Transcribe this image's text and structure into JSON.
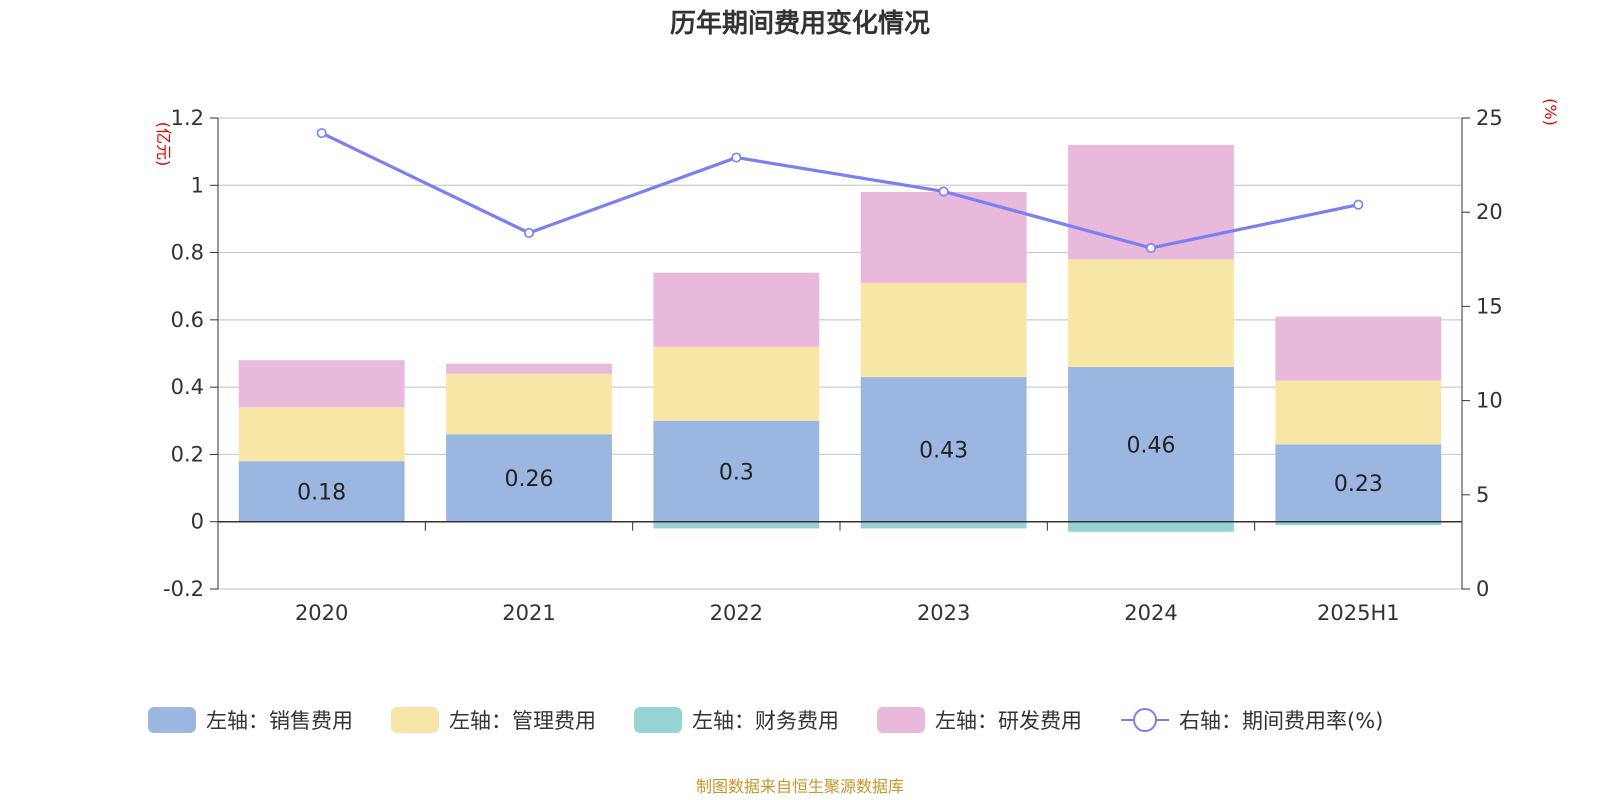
{
  "title": "历年期间费用变化情况",
  "source_note": "制图数据来自恒生聚源数据库",
  "colors": {
    "sales": "#9bb6e0",
    "admin": "#f8e6a6",
    "finance": "#96d3d3",
    "rd": "#e8b9da",
    "line": "#7b7ff0",
    "unit": "#e60000",
    "source": "#c8962a"
  },
  "chart_data": {
    "type": "bar",
    "stacked": true,
    "categories": [
      "2020",
      "2021",
      "2022",
      "2023",
      "2024",
      "2025H1"
    ],
    "left_axis": {
      "unit": "(亿元)",
      "ylim": [
        -0.2,
        1.2
      ],
      "ticks": [
        "-0.2",
        "0",
        "0.2",
        "0.4",
        "0.6",
        "0.8",
        "1",
        "1.2"
      ]
    },
    "right_axis": {
      "unit": "(%)",
      "ylim": [
        0,
        25
      ],
      "ticks": [
        "0",
        "5",
        "10",
        "15",
        "20",
        "25"
      ]
    },
    "grid": true,
    "legend_position": "bottom",
    "series": [
      {
        "key": "sales",
        "name": "左轴：销售费用",
        "axis": "left",
        "values": [
          0.18,
          0.26,
          0.3,
          0.43,
          0.46,
          0.23
        ],
        "labels": [
          "0.18",
          "0.26",
          "0.3",
          "0.43",
          "0.46",
          "0.23"
        ]
      },
      {
        "key": "admin",
        "name": "左轴：管理费用",
        "axis": "left",
        "values": [
          0.16,
          0.18,
          0.22,
          0.28,
          0.32,
          0.19
        ]
      },
      {
        "key": "finance",
        "name": "左轴：财务费用",
        "axis": "left",
        "values": [
          0,
          0,
          -0.02,
          -0.02,
          -0.03,
          -0.01
        ]
      },
      {
        "key": "rd",
        "name": "左轴：研发费用",
        "axis": "left",
        "values": [
          0.14,
          0.03,
          0.22,
          0.27,
          0.34,
          0.19
        ]
      },
      {
        "key": "rate",
        "name": "右轴：期间费用率(%)",
        "axis": "right",
        "type": "line",
        "values": [
          24.2,
          18.9,
          22.9,
          21.1,
          18.1,
          20.4
        ]
      }
    ]
  }
}
